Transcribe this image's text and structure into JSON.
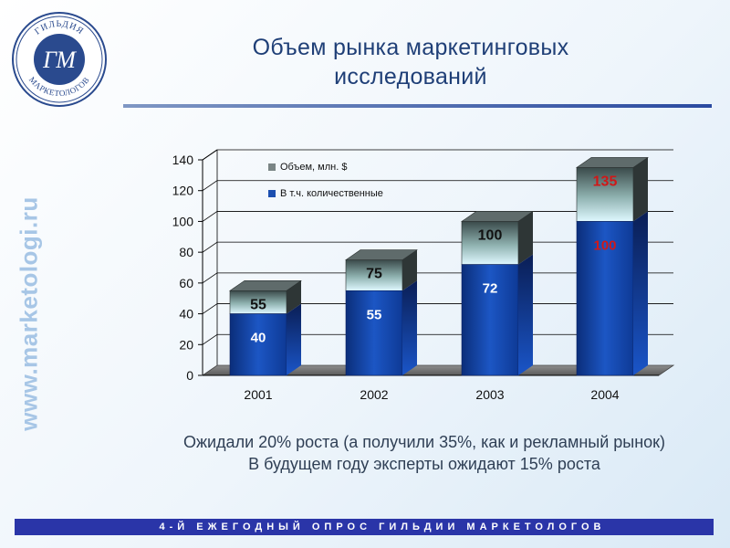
{
  "logo": {
    "text_top": "ГИЛЬДИЯ",
    "text_bottom": "МАРКЕТОЛОГОВ",
    "monogram": "ГМ"
  },
  "title_line1": "Объем рынка маркетинговых",
  "title_line2": "исследований",
  "side_url": "www.marketologi.ru",
  "chart_data": {
    "type": "bar",
    "stacked_3d": true,
    "categories": [
      "2001",
      "2002",
      "2003",
      "2004"
    ],
    "series": [
      {
        "name": "Объем, млн. $",
        "values": [
          55,
          75,
          100,
          135
        ],
        "color": "#1a1a1a"
      },
      {
        "name": "В т.ч. количественные",
        "values": [
          40,
          55,
          72,
          100
        ],
        "color": "#1f4fa8"
      }
    ],
    "total_labels": [
      "55",
      "75",
      "100",
      "135"
    ],
    "quant_labels": [
      "40",
      "55",
      "72",
      "100"
    ],
    "highlight_index": 3,
    "highlight_color": "#d01818",
    "yticks": [
      "0",
      "20",
      "40",
      "60",
      "80",
      "100",
      "120",
      "140"
    ],
    "ylim": [
      0,
      140
    ],
    "grid": true,
    "legend_position": "top-left"
  },
  "note_line1": "Ожидали 20% роста (а получили 35%, как и рекламный рынок)",
  "note_line2": "В будущем году эксперты ожидают 15% роста",
  "footer_text": "4-Й ЕЖЕГОДНЫЙ ОПРОС ГИЛЬДИИ МАРКЕТОЛОГОВ"
}
